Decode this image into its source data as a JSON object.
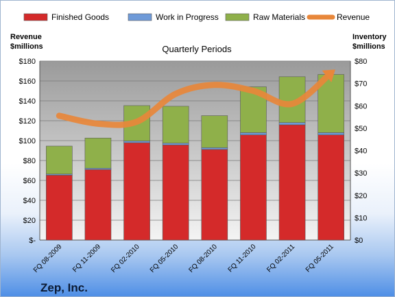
{
  "company": "Zep, Inc.",
  "chart_data": {
    "type": "bar",
    "subtitle": "Quarterly Periods",
    "categories": [
      "FQ 08-2009",
      "FQ 11-2009",
      "FQ 02-2010",
      "FQ 05-2010",
      "FQ 08-2010",
      "FQ 11-2010",
      "FQ 02-2011",
      "FQ 05-2011"
    ],
    "series": [
      {
        "name": "Finished Goods",
        "color": "#d42a2a",
        "stack": "inventory",
        "values": [
          29,
          31.5,
          43.5,
          42.5,
          40.5,
          47,
          51.5,
          47
        ]
      },
      {
        "name": "Work in Progress",
        "color": "#6e9ad8",
        "stack": "inventory",
        "values": [
          0.5,
          0.6,
          0.8,
          0.8,
          0.8,
          1,
          1,
          1
        ]
      },
      {
        "name": "Raw Materials",
        "color": "#8fb04a",
        "stack": "inventory",
        "values": [
          12.5,
          13.5,
          15.8,
          16.5,
          14.3,
          20.5,
          20.5,
          26
        ]
      },
      {
        "name": "Revenue",
        "color": "#e8873a",
        "type": "line",
        "axis": "left",
        "values": [
          125,
          117,
          119,
          147,
          156,
          150,
          137,
          168
        ]
      }
    ],
    "y_left": {
      "label_line1": "Revenue",
      "label_line2": "$millions",
      "min": 0,
      "max": 180,
      "step": 20,
      "ticks": [
        "$-",
        "$20",
        "$40",
        "$60",
        "$80",
        "$100",
        "$120",
        "$140",
        "$160",
        "$180"
      ]
    },
    "y_right": {
      "label_line1": "Inventory",
      "label_line2": "$millions",
      "min": 0,
      "max": 80,
      "step": 10,
      "ticks": [
        "$0",
        "$10",
        "$20",
        "$30",
        "$40",
        "$50",
        "$60",
        "$70",
        "$80"
      ]
    },
    "grid": true,
    "legend_position": "top"
  }
}
